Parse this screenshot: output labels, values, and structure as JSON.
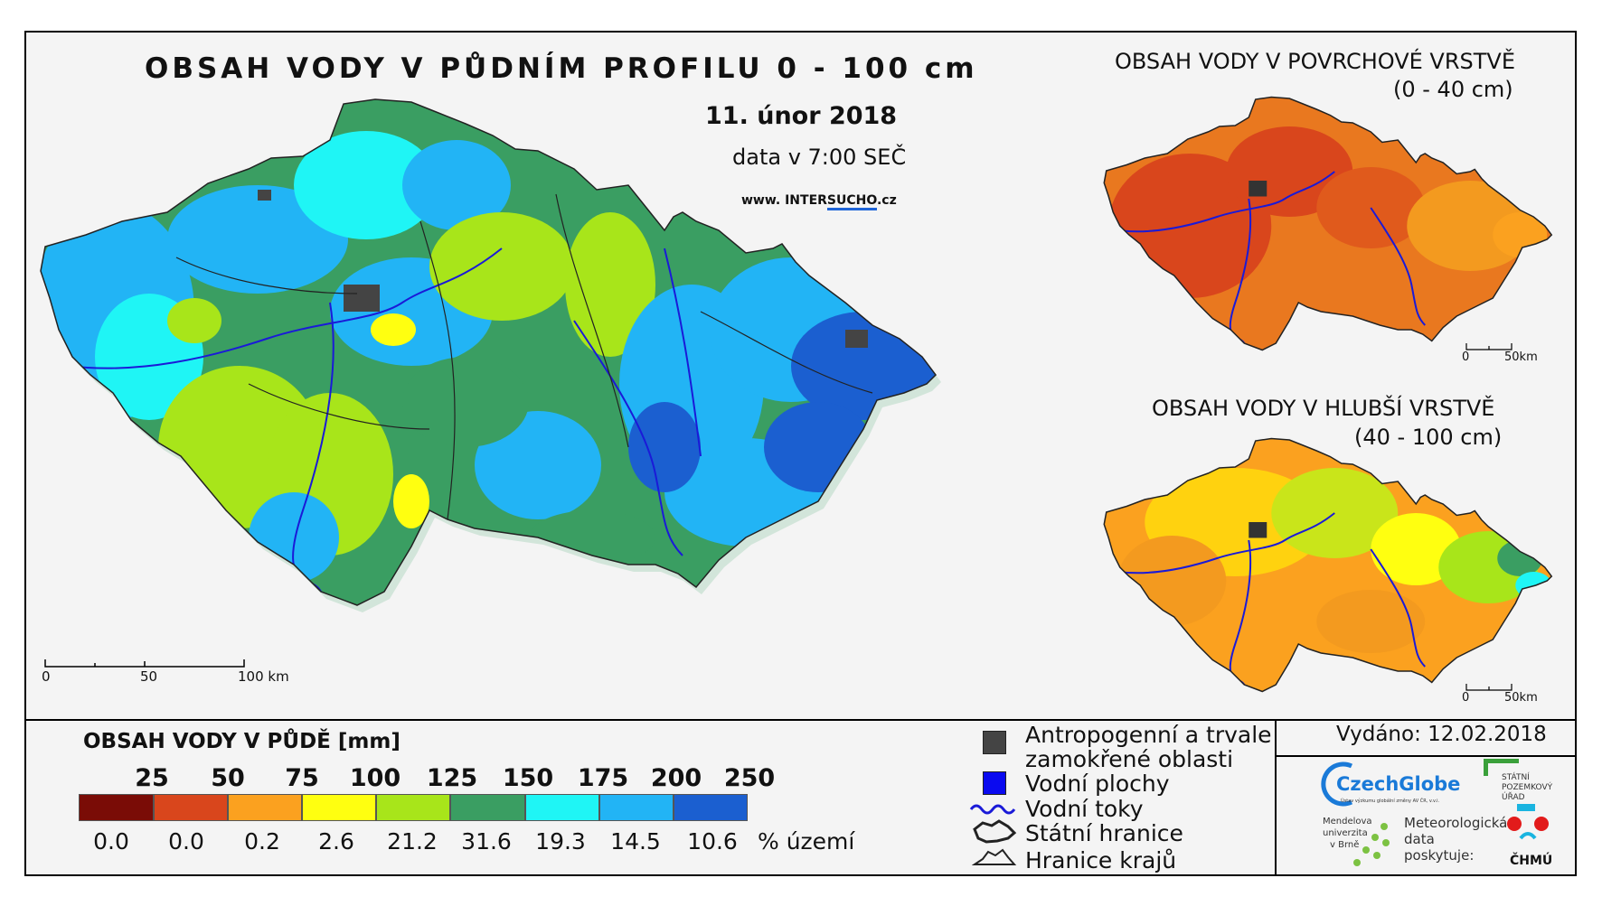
{
  "title": "OBSAH VODY V PŮDNÍM PROFILU 0 - 100 cm",
  "date": "11. únor 2018",
  "time": "data v 7:00 SEČ",
  "website": {
    "prefix": "www. INTER",
    "highlight": "SUCHO",
    "suffix": ".cz"
  },
  "inset_surface": {
    "title": "OBSAH VODY V POVRCHOVÉ VRSTVĚ",
    "subtitle": "(0 - 40 cm)",
    "scale": [
      "0",
      "50km"
    ]
  },
  "inset_deep": {
    "title": "OBSAH VODY V HLUBŠÍ VRSTVĚ",
    "subtitle": "(40 - 100 cm)",
    "scale": [
      "0",
      "50km"
    ]
  },
  "main_scale": [
    "0",
    "50",
    "100 km"
  ],
  "legend": {
    "title": "OBSAH VODY V PŮDĚ [mm]",
    "class_breaks": [
      "25",
      "50",
      "75",
      "100",
      "125",
      "150",
      "175",
      "200",
      "250"
    ],
    "colors": [
      "#7a0c06",
      "#d9461c",
      "#fba11f",
      "#ffff10",
      "#a8e51a",
      "#3a9e62",
      "#1ff5f5",
      "#22b4f5",
      "#1b5fd0"
    ],
    "percent": [
      "0.0",
      "0.0",
      "0.2",
      "2.6",
      "21.2",
      "31.6",
      "19.3",
      "14.5",
      "10.6"
    ],
    "percent_unit": "% území"
  },
  "map_key": {
    "anthropogenic_line1": "Antropogenní a trvale",
    "anthropogenic_line2": "zamokřené oblasti",
    "water_bodies": "Vodní plochy",
    "rivers": "Vodní toky",
    "state_border": "Státní hranice",
    "region_border": "Hranice krajů"
  },
  "issued": "Vydáno: 12.02.2018",
  "logos": {
    "czechglobe": "CzechGlobe",
    "czechglobe_sub": "Ústav výzkumu globální změny AV ČR, v.v.i.",
    "spu_line1": "STÁTNÍ",
    "spu_line2": "POZEMKOVÝ",
    "spu_line3": "ÚŘAD",
    "mendel_line1": "Mendelova",
    "mendel_line2": "univerzita",
    "mendel_line3": "v Brně",
    "data_line1": "Meteorologická",
    "data_line2": "data",
    "data_line3": "poskytuje:",
    "chmu": "ČHMÚ"
  }
}
